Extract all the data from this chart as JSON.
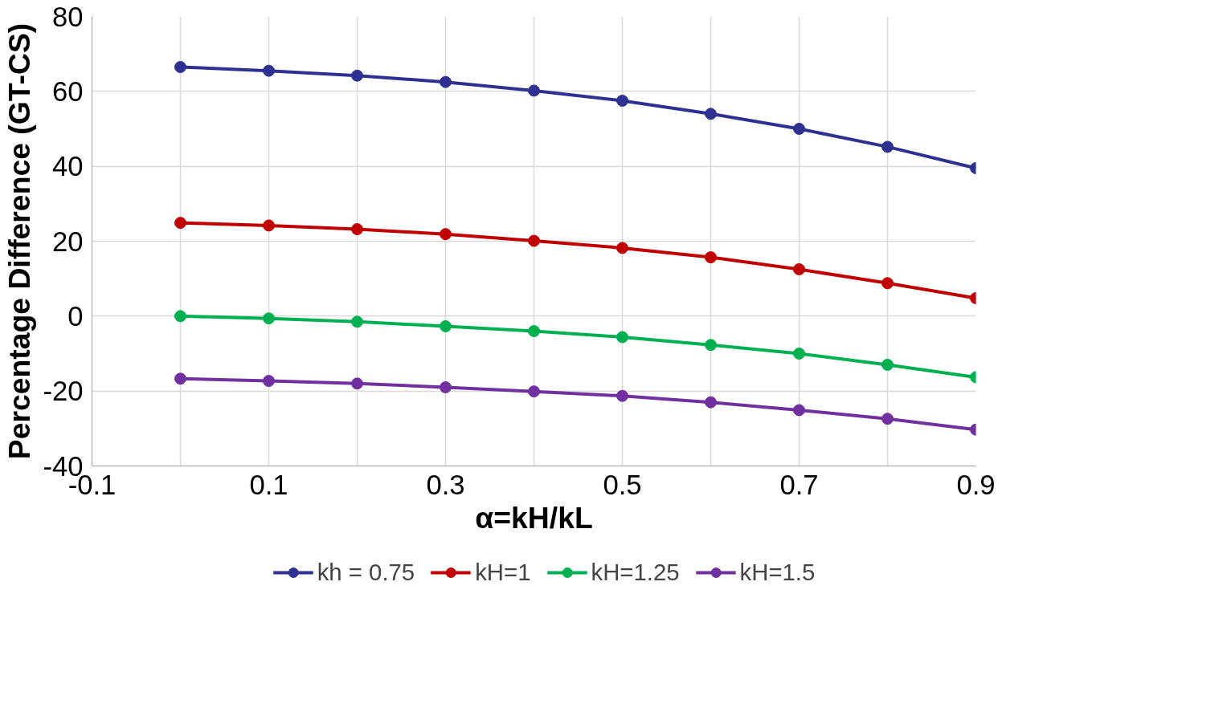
{
  "chart_data": {
    "type": "line",
    "xlabel": "α=kH/kL",
    "ylabel": "Percentage Difference (GT-CS)",
    "x": [
      0,
      0.1,
      0.2,
      0.3,
      0.4,
      0.5,
      0.6,
      0.7,
      0.8,
      0.9
    ],
    "series": [
      {
        "name": "kh = 0.75",
        "color": "#2e3192",
        "values": [
          66.5,
          65.5,
          64.2,
          62.5,
          60.2,
          57.5,
          54,
          50,
          45.2,
          39.5
        ]
      },
      {
        "name": "kH=1",
        "color": "#c00000",
        "values": [
          24.9,
          24.2,
          23.2,
          21.9,
          20.1,
          18.2,
          15.7,
          12.5,
          8.8,
          4.8
        ]
      },
      {
        "name": "kH=1.25",
        "color": "#00b050",
        "values": [
          0,
          -0.6,
          -1.5,
          -2.7,
          -4,
          -5.6,
          -7.7,
          -10,
          -13,
          -16.3
        ]
      },
      {
        "name": "kH=1.5",
        "color": "#7030a0",
        "values": [
          -16.7,
          -17.3,
          -18,
          -19,
          -20.1,
          -21.3,
          -23,
          -25.1,
          -27.4,
          -30.3
        ]
      }
    ],
    "xlim": [
      -0.1,
      0.9
    ],
    "ylim": [
      -40,
      80
    ],
    "xticks": [
      -0.1,
      {
        "value": 0,
        "label": null
      },
      0.1,
      {
        "value": 0.2,
        "label": null
      },
      0.3,
      {
        "value": 0.4,
        "label": null
      },
      0.5,
      {
        "value": 0.6,
        "label": null
      },
      0.7,
      {
        "value": 0.8,
        "label": null
      },
      0.9
    ],
    "yticks": [
      -40,
      -20,
      0,
      20,
      40,
      60,
      80
    ],
    "grid": true,
    "legend": "bottom",
    "marker": "circle",
    "line_style": "solid"
  }
}
